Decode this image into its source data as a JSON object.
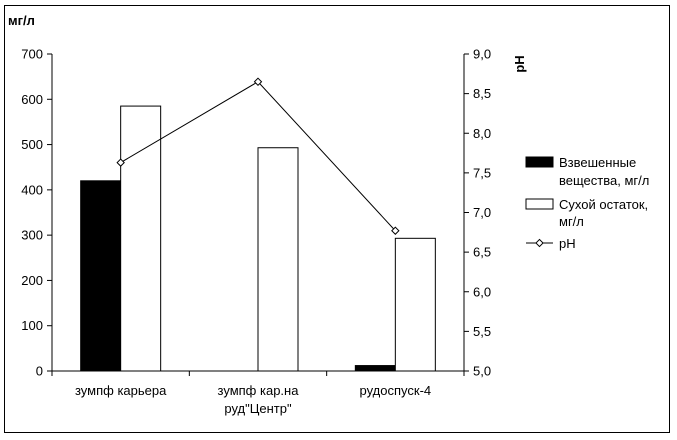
{
  "chart_data": {
    "type": "bar",
    "categories": [
      [
        "зумпф карьера"
      ],
      [
        "зумпф кар.на",
        "руд\"Центр\""
      ],
      [
        "рудоспуск-4"
      ]
    ],
    "y_left": {
      "label": "мг/л",
      "ylim": [
        0,
        700
      ],
      "ticks": [
        "0",
        "100",
        "200",
        "300",
        "400",
        "500",
        "600",
        "700"
      ]
    },
    "y_right": {
      "label": "pH",
      "ylim": [
        5.0,
        9.0
      ],
      "ticks": [
        "5,0",
        "5,5",
        "6,0",
        "6,5",
        "7,0",
        "7,5",
        "8,0",
        "8,5",
        "9,0"
      ]
    },
    "series": [
      {
        "name": "Взвешенные вещества, мг/л",
        "kind": "bar",
        "axis": "left",
        "color": "#000000",
        "values": [
          420,
          null,
          12
        ]
      },
      {
        "name": "Сухой остаток, мг/л",
        "kind": "bar",
        "axis": "left",
        "color": "#ffffff",
        "values": [
          585,
          493,
          293
        ]
      },
      {
        "name": "pH",
        "kind": "line",
        "axis": "right",
        "color": "#000000",
        "values": [
          7.63,
          8.65,
          6.77
        ]
      }
    ],
    "legend": {
      "placement": "right",
      "entries": [
        [
          "Взвешенные",
          "вещества, мг/л"
        ],
        [
          "Сухой остаток,",
          "мг/л"
        ],
        [
          "pH"
        ]
      ]
    },
    "grid": false
  }
}
